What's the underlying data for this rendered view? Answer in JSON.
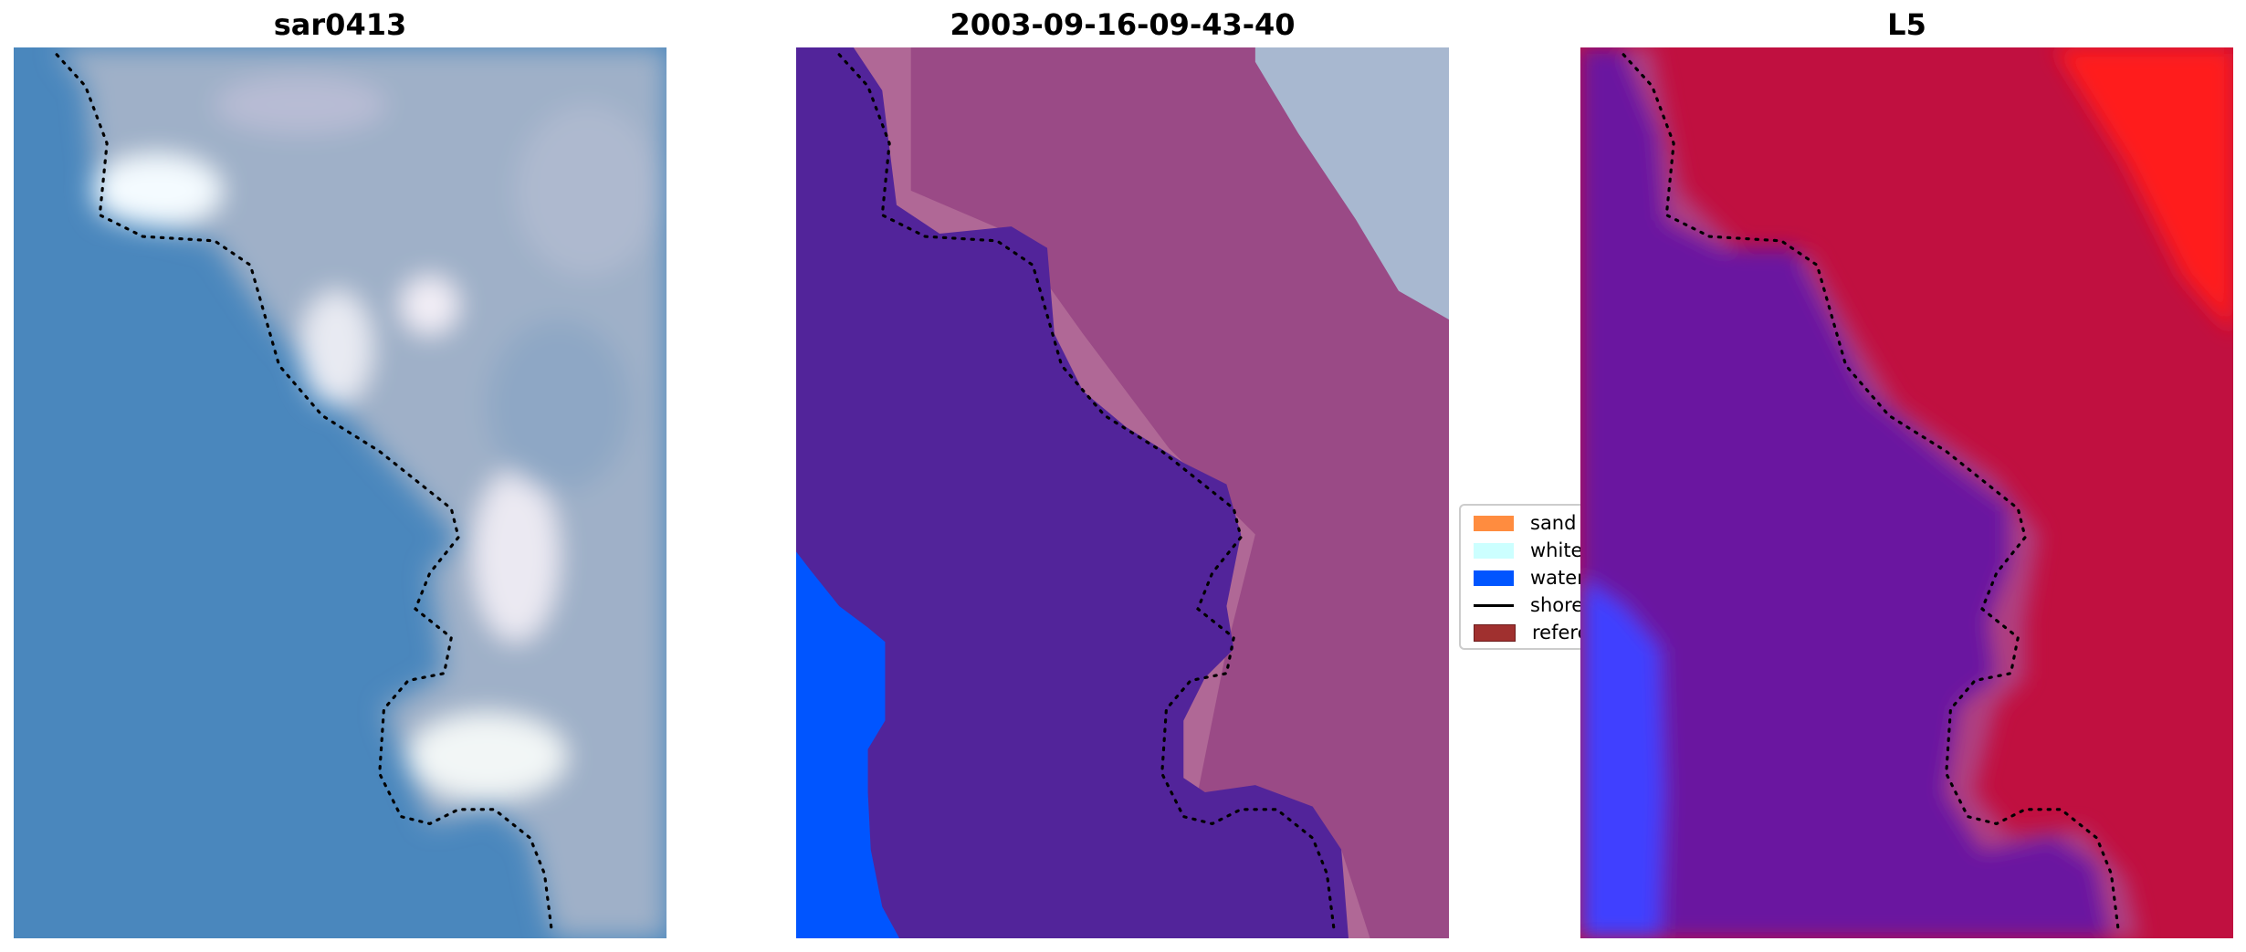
{
  "panels": [
    {
      "title": "sar0413"
    },
    {
      "title": "2003-09-16-09-43-40"
    },
    {
      "title": "L5"
    }
  ],
  "legend": {
    "items": [
      {
        "label": "sand",
        "color": "#ff8c3f",
        "type": "patch"
      },
      {
        "label": "whitewater",
        "color": "#ccffff",
        "type": "patch"
      },
      {
        "label": "water",
        "color": "#0055ff",
        "type": "patch"
      },
      {
        "label": "shoreline",
        "color": "#000000",
        "type": "line"
      },
      {
        "label": "reference shoreline",
        "color": "#a0302f",
        "type": "patch"
      }
    ]
  },
  "colors": {
    "shoreline": "#000000",
    "water_class": "#0055ff",
    "land_overlay": "#52249a"
  }
}
